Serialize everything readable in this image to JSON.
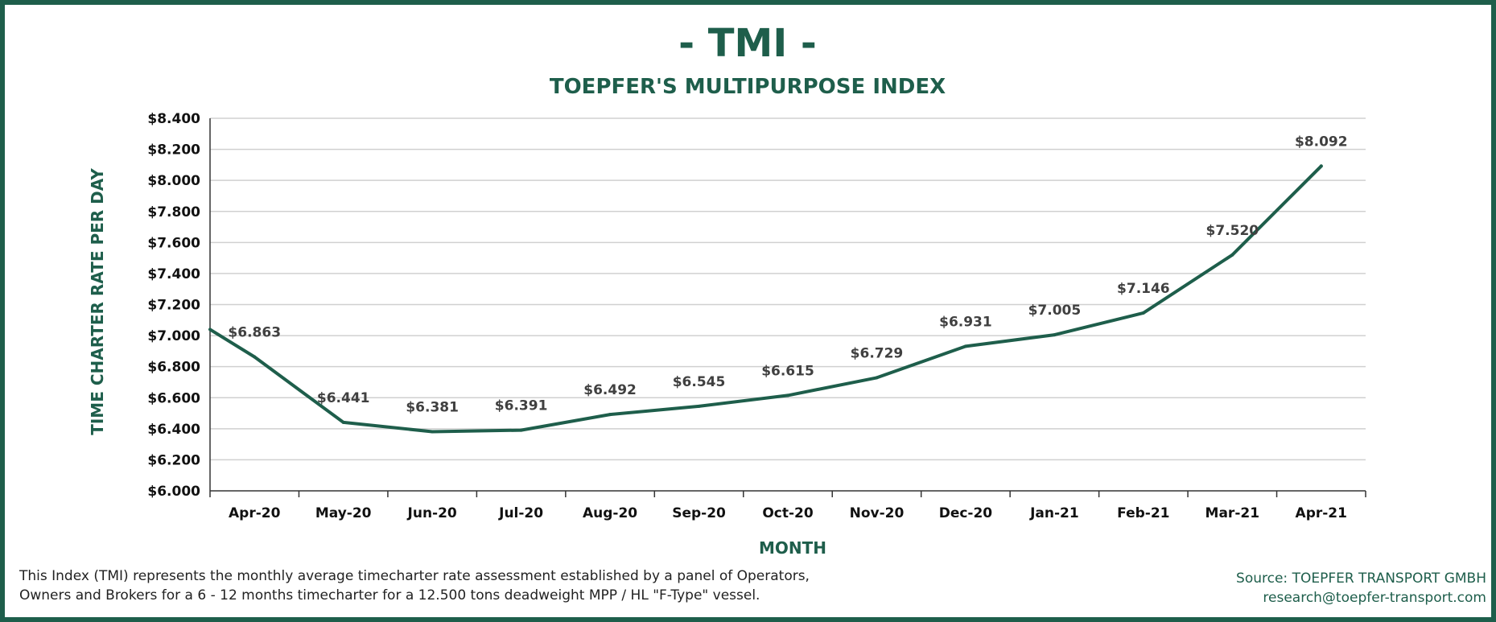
{
  "chart_data": {
    "type": "line",
    "title": "- TMI -",
    "subtitle": "TOEPFER'S MULTIPURPOSE INDEX",
    "xlabel": "MONTH",
    "ylabel": "TIME CHARTER RATE PER DAY",
    "categories": [
      "Apr-20",
      "May-20",
      "Jun-20",
      "Jul-20",
      "Aug-20",
      "Sep-20",
      "Oct-20",
      "Nov-20",
      "Dec-20",
      "Jan-21",
      "Feb-21",
      "Mar-21",
      "Apr-21"
    ],
    "series": [
      {
        "values": [
          6863,
          6441,
          6381,
          6391,
          6492,
          6545,
          6615,
          6729,
          6931,
          7005,
          7146,
          7520,
          8092
        ],
        "start_value": 7040,
        "labels": [
          "$6.863",
          "$6.441",
          "$6.381",
          "$6.391",
          "$6.492",
          "$6.545",
          "$6.615",
          "$6.729",
          "$6.931",
          "$7.005",
          "$7.146",
          "$7.520",
          "$8.092"
        ],
        "color": "#1e5e4b"
      }
    ],
    "yticks": [
      "$6.000",
      "$6.200",
      "$6.400",
      "$6.600",
      "$6.800",
      "$7.000",
      "$7.200",
      "$7.400",
      "$7.600",
      "$7.800",
      "$8.000",
      "$8.200",
      "$8.400"
    ],
    "ylim": [
      6000,
      8400
    ],
    "ystep": 200,
    "grid": true,
    "legend": "none"
  },
  "footnote": {
    "line1": "This Index (TMI) represents the monthly average timecharter rate assessment established by a panel of Operators,",
    "line2": "Owners and Brokers for a 6 - 12 months timecharter for a 12.500 tons deadweight MPP / HL \"F-Type\" vessel."
  },
  "source": {
    "line1": "Source: TOEPFER TRANSPORT GMBH",
    "line2": "research@toepfer-transport.com"
  },
  "colors": {
    "brand": "#1e5e4b",
    "grid": "#d0d0d0",
    "axis": "#333333"
  }
}
